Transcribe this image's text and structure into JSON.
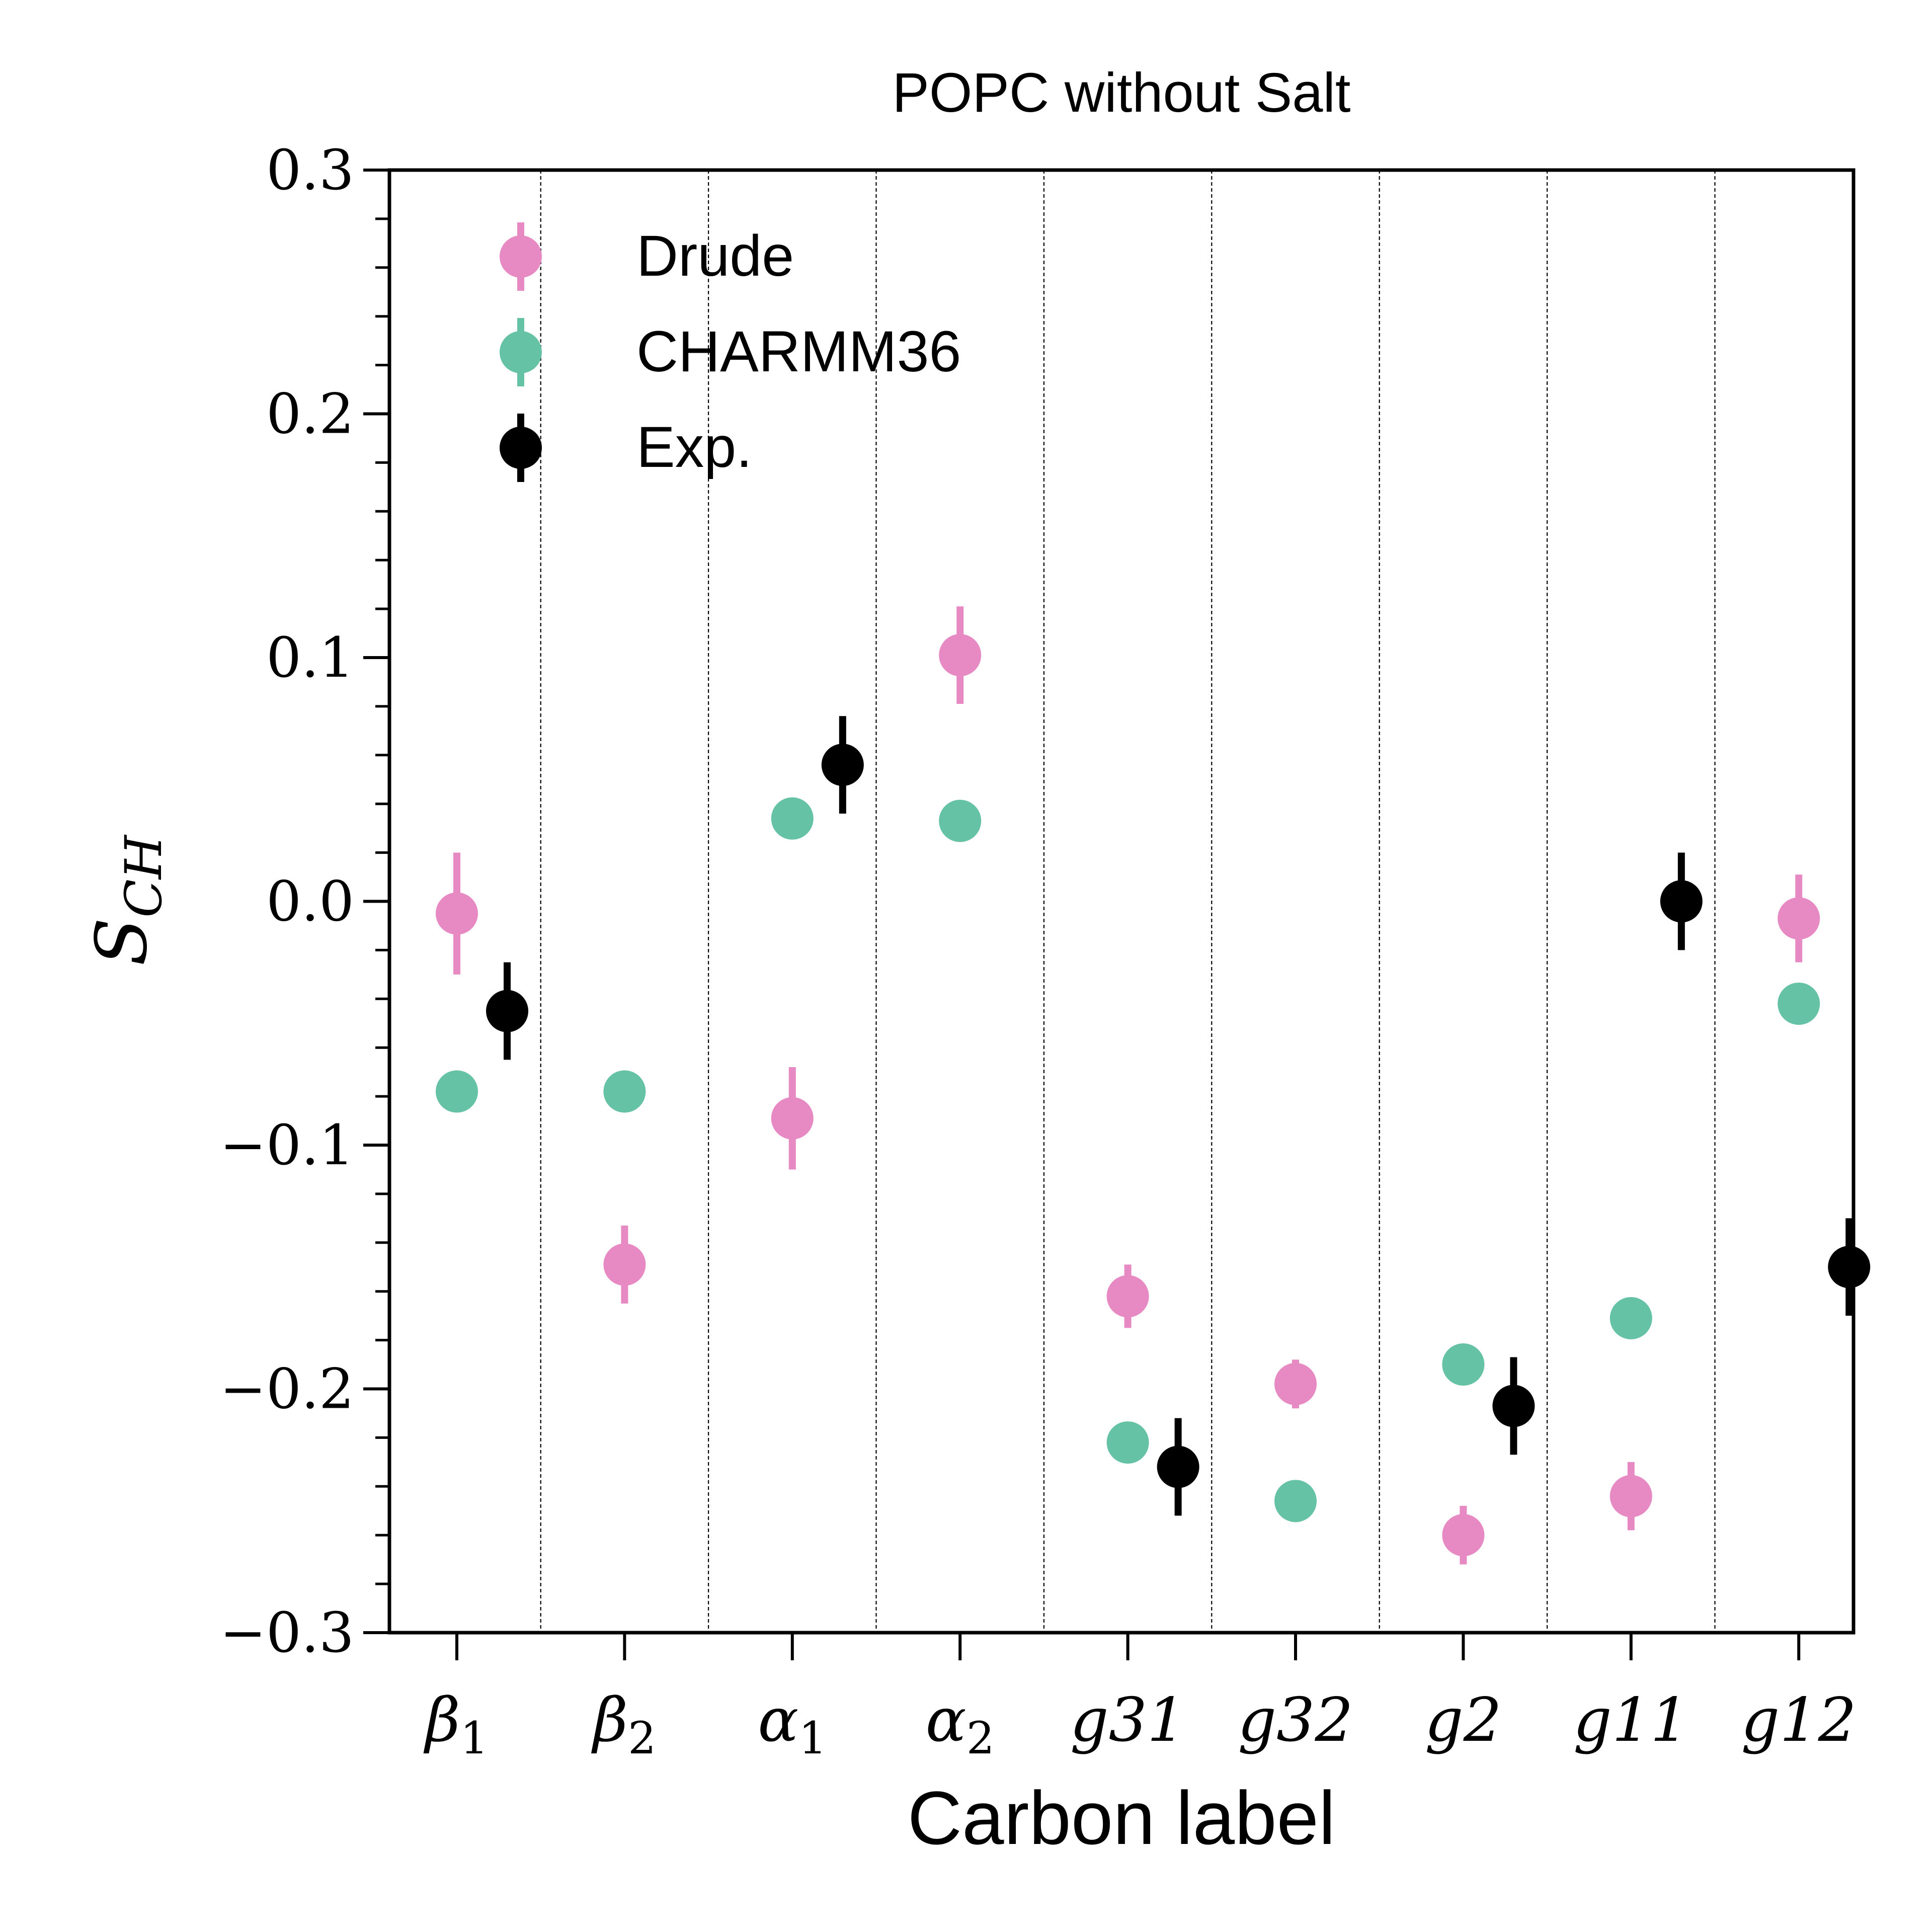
{
  "chart_data": {
    "type": "scatter",
    "title": "POPC without Salt",
    "xlabel": "Carbon label",
    "ylabel_base": "S",
    "ylabel_sub": "CH",
    "ylim": [
      -0.3,
      0.3
    ],
    "yticks": [
      {
        "value": -0.3,
        "label": "−0.3"
      },
      {
        "value": -0.2,
        "label": "−0.2"
      },
      {
        "value": -0.1,
        "label": "−0.1"
      },
      {
        "value": 0.0,
        "label": "0.0"
      },
      {
        "value": 0.1,
        "label": "0.1"
      },
      {
        "value": 0.2,
        "label": "0.2"
      },
      {
        "value": 0.3,
        "label": "0.3"
      }
    ],
    "categories": [
      {
        "base": "β",
        "sub": "1"
      },
      {
        "base": "β",
        "sub": "2"
      },
      {
        "base": "α",
        "sub": "1"
      },
      {
        "base": "α",
        "sub": "2"
      },
      {
        "base": "g31",
        "sub": ""
      },
      {
        "base": "g32",
        "sub": ""
      },
      {
        "base": "g2",
        "sub": ""
      },
      {
        "base": "g11",
        "sub": ""
      },
      {
        "base": "g12",
        "sub": ""
      }
    ],
    "grid": "vertical dashed separators between categories",
    "legend_position": "top-left",
    "series": [
      {
        "name": "Drude",
        "color": "#e78ac3",
        "offset": 0,
        "values": [
          -0.005,
          -0.149,
          -0.089,
          0.101,
          -0.162,
          -0.198,
          -0.26,
          -0.244,
          -0.007
        ],
        "errors": [
          0.025,
          0.016,
          0.021,
          0.02,
          0.013,
          0.01,
          0.012,
          0.014,
          0.018
        ]
      },
      {
        "name": "CHARMM36",
        "color": "#66c2a5",
        "offset": 0,
        "values": [
          -0.078,
          -0.078,
          0.034,
          0.033,
          -0.222,
          -0.246,
          -0.19,
          -0.171,
          -0.042
        ],
        "errors": [
          0.002,
          0.002,
          0.002,
          0.002,
          0.002,
          0.002,
          0.002,
          0.002,
          0.002
        ]
      },
      {
        "name": "Exp.",
        "color": "#000000",
        "offset": 0.3,
        "values": [
          -0.045,
          null,
          0.056,
          null,
          -0.232,
          null,
          -0.207,
          0.0,
          -0.15
        ],
        "errors": [
          0.02,
          null,
          0.02,
          null,
          0.02,
          null,
          0.02,
          0.02,
          0.02
        ]
      }
    ]
  }
}
